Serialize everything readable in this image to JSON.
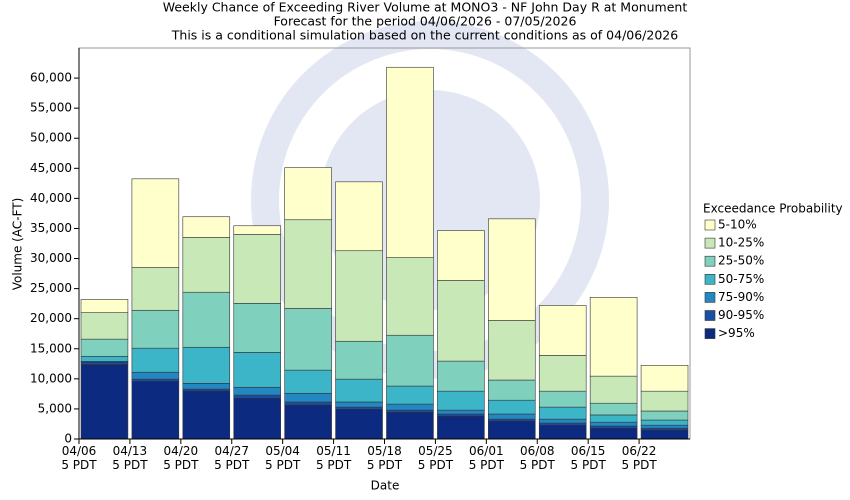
{
  "chart_data": {
    "type": "stacked_bar",
    "title": [
      "Weekly Chance of Exceeding River Volume at MONO3 - NF John Day R at Monument",
      "Forecast for the period 04/06/2026 - 07/05/2026",
      "This is a conditional simulation based on the current conditions as of 04/06/2026"
    ],
    "x_label": "Date",
    "y_label": "Volume (AC-FT)",
    "legend_title": "Exceedance Probability",
    "categories": [
      "04/06\n5 PDT",
      "04/13\n5 PDT",
      "04/20\n5 PDT",
      "04/27\n5 PDT",
      "05/04\n5 PDT",
      "05/11\n5 PDT",
      "05/18\n5 PDT",
      "05/25\n5 PDT",
      "06/01\n5 PDT",
      "06/08\n5 PDT",
      "06/15\n5 PDT",
      "06/22\n5 PDT"
    ],
    "series": [
      {
        "name": ">95%",
        "color": "#0c2a80",
        "values": [
          12400,
          9600,
          8000,
          6800,
          5650,
          4950,
          4450,
          3800,
          3000,
          2300,
          1800,
          1500
        ]
      },
      {
        "name": "90-95%",
        "color": "#1a50a4",
        "values": [
          350,
          350,
          300,
          500,
          500,
          350,
          350,
          350,
          300,
          350,
          350,
          300
        ]
      },
      {
        "name": "75-90%",
        "color": "#2388c2",
        "values": [
          150,
          1150,
          950,
          1300,
          1450,
          850,
          1000,
          650,
          850,
          650,
          650,
          500
        ]
      },
      {
        "name": "50-75%",
        "color": "#3db5c8",
        "values": [
          850,
          4000,
          6000,
          5800,
          3850,
          3800,
          3000,
          3150,
          2300,
          2000,
          1200,
          850
        ]
      },
      {
        "name": "25-50%",
        "color": "#80d0be",
        "values": [
          2850,
          6300,
          9150,
          8150,
          10250,
          6300,
          8450,
          5000,
          3350,
          2650,
          1950,
          1500
        ]
      },
      {
        "name": "10-25%",
        "color": "#c8e8b8",
        "values": [
          4400,
          7100,
          9100,
          11450,
          14750,
          15050,
          12900,
          13400,
          9900,
          5950,
          4500,
          3300
        ]
      },
      {
        "name": "5-10%",
        "color": "#ffffcc",
        "values": [
          2200,
          14750,
          3450,
          1450,
          8650,
          11450,
          31650,
          8300,
          16900,
          8300,
          13100,
          4300
        ]
      }
    ],
    "ylim": [
      0,
      65000
    ],
    "yticks": [
      0,
      {
        "value": 5000,
        "label": "5,000"
      },
      {
        "value": 10000,
        "label": "10,000"
      },
      {
        "value": 15000,
        "label": "15,000"
      },
      {
        "value": 20000,
        "label": "20,000"
      },
      {
        "value": 25000,
        "label": "25,000"
      },
      {
        "value": 30000,
        "label": "30,000"
      },
      {
        "value": 35000,
        "label": "35,000"
      },
      {
        "value": 40000,
        "label": "40,000"
      },
      {
        "value": 45000,
        "label": "45,000"
      },
      {
        "value": 50000,
        "label": "50,000"
      },
      {
        "value": 55000,
        "label": "55,000"
      },
      {
        "value": 60000,
        "label": "60,000"
      }
    ],
    "legend": "right"
  }
}
